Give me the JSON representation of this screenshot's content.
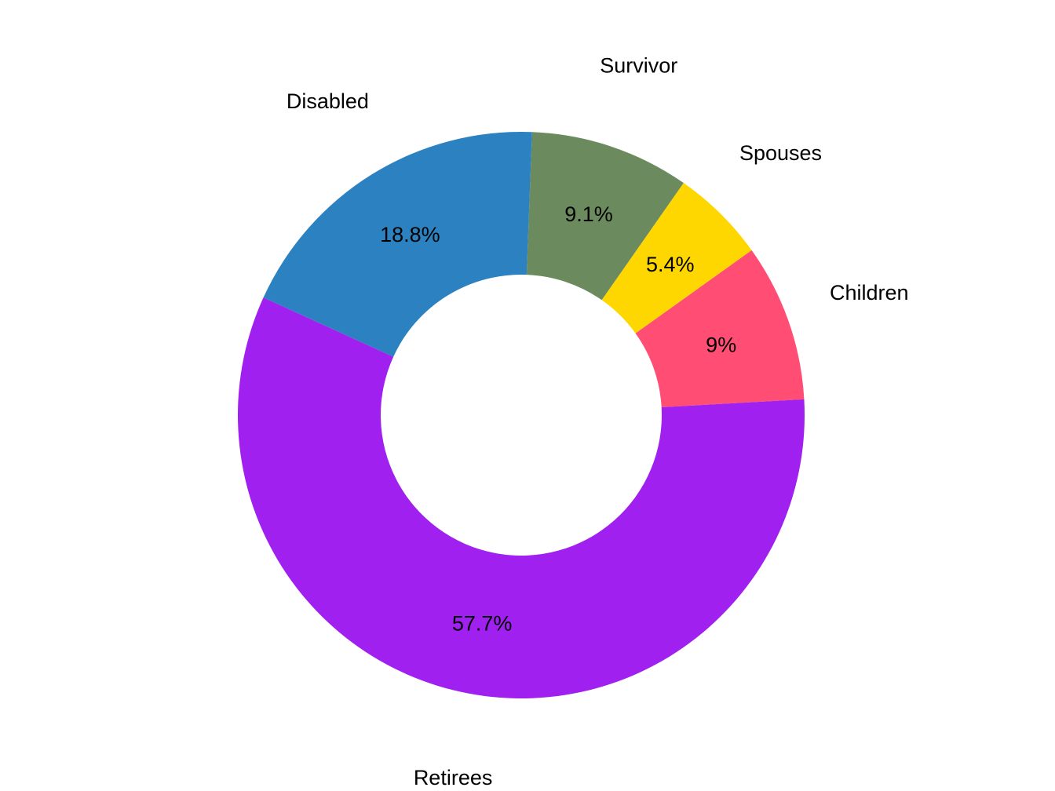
{
  "chart_data": {
    "type": "pie",
    "style": "donut",
    "title": "",
    "slices": [
      {
        "name": "Children",
        "value": 9.0,
        "percent_label": "9%",
        "color": "#FF4D74"
      },
      {
        "name": "Spouses",
        "value": 5.4,
        "percent_label": "5.4%",
        "color": "#FFD700"
      },
      {
        "name": "Survivor",
        "value": 9.1,
        "percent_label": "9.1%",
        "color": "#6B8A5D"
      },
      {
        "name": "Disabled",
        "value": 18.8,
        "percent_label": "18.8%",
        "color": "#2C82C0"
      },
      {
        "name": "Retirees",
        "value": 57.7,
        "percent_label": "57.7%",
        "color": "#A020F0"
      }
    ],
    "legend": "none",
    "labels": "outside names, inside percentages"
  }
}
